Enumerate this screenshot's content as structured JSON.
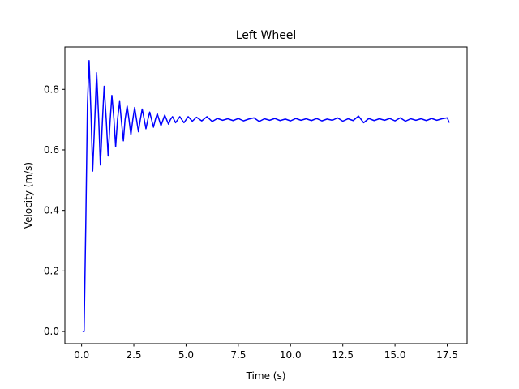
{
  "chart_data": {
    "type": "line",
    "title": "Left Wheel",
    "x_label": "Time (s)",
    "y_label": "Velocity (m/s)",
    "x": [
      0.05,
      0.12,
      0.2,
      0.28,
      0.36,
      0.45,
      0.53,
      0.62,
      0.72,
      0.82,
      0.9,
      1.0,
      1.08,
      1.18,
      1.27,
      1.37,
      1.45,
      1.55,
      1.63,
      1.72,
      1.82,
      1.9,
      2.0,
      2.08,
      2.18,
      2.27,
      2.36,
      2.45,
      2.54,
      2.63,
      2.72,
      2.81,
      2.9,
      3.0,
      3.08,
      3.17,
      3.26,
      3.35,
      3.44,
      3.53,
      3.62,
      3.71,
      3.8,
      3.9,
      3.98,
      4.07,
      4.16,
      4.25,
      4.35,
      4.5,
      4.7,
      4.9,
      5.1,
      5.3,
      5.5,
      5.75,
      6.0,
      6.25,
      6.5,
      6.75,
      7.0,
      7.25,
      7.5,
      7.75,
      8.0,
      8.25,
      8.5,
      8.75,
      9.0,
      9.25,
      9.5,
      9.75,
      10.0,
      10.25,
      10.5,
      10.75,
      11.0,
      11.25,
      11.5,
      11.75,
      12.0,
      12.25,
      12.5,
      12.75,
      13.0,
      13.25,
      13.5,
      13.75,
      14.0,
      14.25,
      14.5,
      14.75,
      15.0,
      15.25,
      15.5,
      15.75,
      16.0,
      16.25,
      16.5,
      16.75,
      17.0,
      17.25,
      17.5,
      17.6
    ],
    "series": [
      {
        "color": "#0000ff",
        "values": [
          0,
          0,
          0.35,
          0.75,
          0.895,
          0.72,
          0.53,
          0.68,
          0.855,
          0.7,
          0.55,
          0.7,
          0.81,
          0.7,
          0.58,
          0.7,
          0.78,
          0.7,
          0.61,
          0.7,
          0.76,
          0.7,
          0.63,
          0.7,
          0.745,
          0.7,
          0.65,
          0.7,
          0.74,
          0.7,
          0.66,
          0.7,
          0.735,
          0.7,
          0.67,
          0.7,
          0.725,
          0.7,
          0.675,
          0.7,
          0.72,
          0.7,
          0.68,
          0.7,
          0.715,
          0.7,
          0.685,
          0.7,
          0.71,
          0.69,
          0.71,
          0.69,
          0.71,
          0.695,
          0.708,
          0.696,
          0.71,
          0.694,
          0.704,
          0.698,
          0.703,
          0.697,
          0.704,
          0.696,
          0.702,
          0.706,
          0.694,
          0.703,
          0.698,
          0.704,
          0.697,
          0.702,
          0.696,
          0.704,
          0.698,
          0.703,
          0.697,
          0.704,
          0.696,
          0.702,
          0.698,
          0.706,
          0.695,
          0.703,
          0.697,
          0.712,
          0.69,
          0.704,
          0.697,
          0.703,
          0.698,
          0.704,
          0.696,
          0.706,
          0.695,
          0.703,
          0.698,
          0.703,
          0.697,
          0.704,
          0.698,
          0.703,
          0.706,
          0.69
        ]
      }
    ],
    "xlim": [
      -0.8,
      18.45
    ],
    "ylim": [
      -0.04,
      0.94
    ],
    "xticks": [
      {
        "value": 0,
        "label": "0.0"
      },
      2.5,
      {
        "value": 5,
        "label": "5.0"
      },
      7.5,
      {
        "value": 10,
        "label": "10.0"
      },
      12.5,
      {
        "value": 15,
        "label": "15.0"
      },
      17.5
    ],
    "yticks": [
      {
        "value": 0,
        "label": "0.0"
      },
      0.2,
      0.4,
      0.6,
      0.8
    ]
  }
}
